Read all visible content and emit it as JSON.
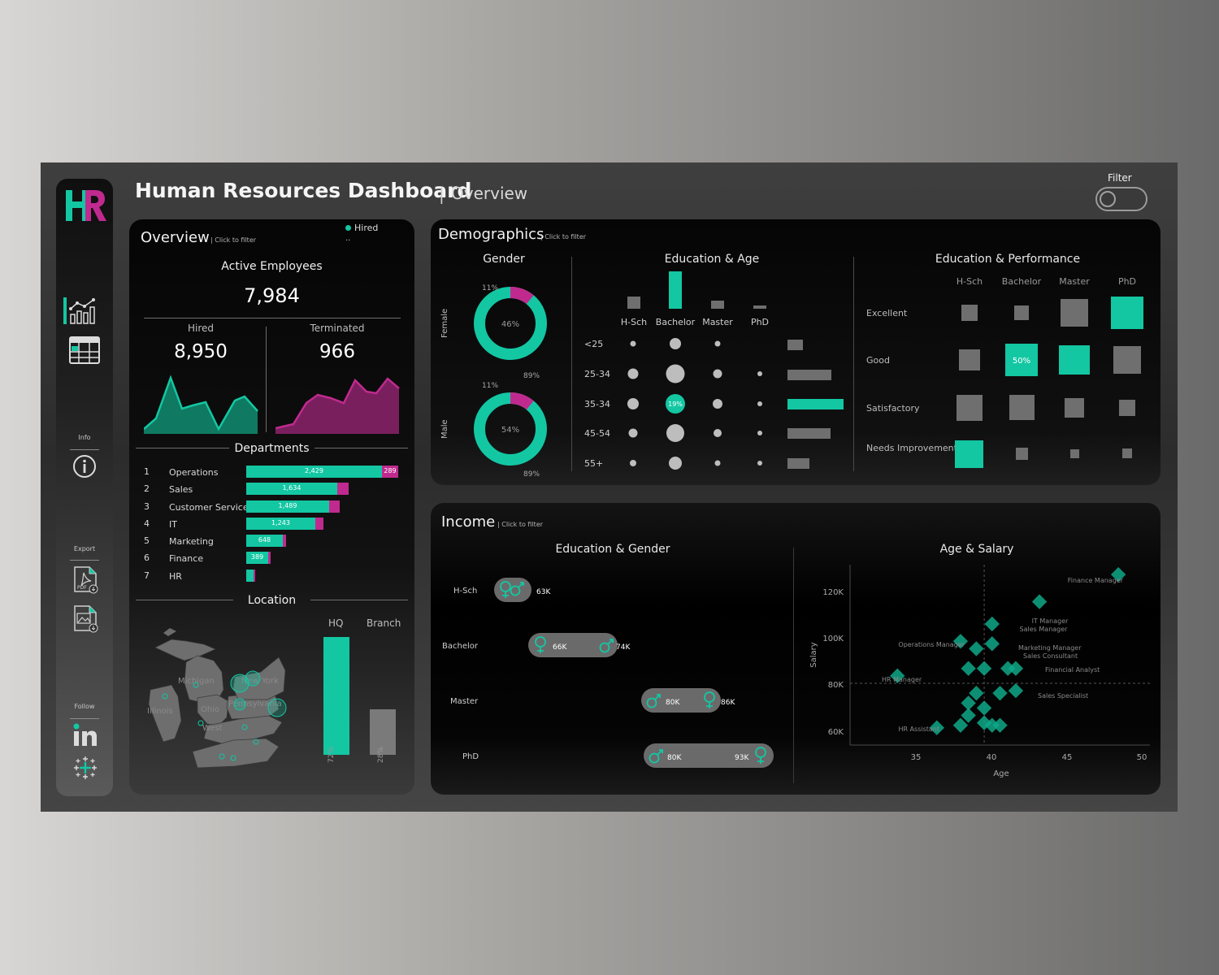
{
  "header": {
    "title": "Human Resources Dashboard",
    "separator": "|",
    "subtitle": "Overview",
    "filter_label": "Filter"
  },
  "sidebar": {
    "logo": "HR",
    "info_label": "Info",
    "export_label": "Export",
    "follow_label": "Follow"
  },
  "overview": {
    "title": "Overview",
    "hint": "| Click to filter",
    "legend": "Hired",
    "legend_sub": "..",
    "active_label": "Active Employees",
    "active_value": "7,984",
    "hired_label": "Hired",
    "hired_value": "8,950",
    "terminated_label": "Terminated",
    "terminated_value": "966",
    "departments_title": "Departments",
    "departments": [
      {
        "rank": "1",
        "name": "Operations",
        "hired": "2,429",
        "terminated": "289"
      },
      {
        "rank": "2",
        "name": "Sales",
        "hired": "1,634",
        "terminated": ""
      },
      {
        "rank": "3",
        "name": "Customer Service",
        "hired": "1,489",
        "terminated": ""
      },
      {
        "rank": "4",
        "name": "IT",
        "hired": "1,243",
        "terminated": ""
      },
      {
        "rank": "5",
        "name": "Marketing",
        "hired": "648",
        "terminated": ""
      },
      {
        "rank": "6",
        "name": "Finance",
        "hired": "389",
        "terminated": ""
      },
      {
        "rank": "7",
        "name": "HR",
        "hired": "",
        "terminated": ""
      }
    ],
    "location_title": "Location",
    "location": {
      "hq_label": "HQ",
      "branch_label": "Branch",
      "hq_pct": "72%",
      "branch_pct": "28%",
      "hq_value": 72,
      "branch_value": 28
    },
    "map_labels": [
      "Michigan",
      "New York",
      "Illinois",
      "Ohio",
      "Pennsylvania",
      "West"
    ]
  },
  "demographics": {
    "title": "Demographics",
    "hint": "| Click to filter",
    "gender_title": "Gender",
    "female": {
      "label": "Female",
      "share": "46%",
      "small_pct": "11%",
      "big_pct": "89%",
      "terminated_share": 11
    },
    "male": {
      "label": "Male",
      "share": "54%",
      "small_pct": "11%",
      "big_pct": "89%",
      "terminated_share": 11
    },
    "edu_age_title": "Education & Age",
    "edu_levels": [
      "H-Sch",
      "Bachelor",
      "Master",
      "PhD"
    ],
    "age_groups": [
      "<25",
      "25-34",
      "35-34",
      "45-54",
      "55+"
    ],
    "highlight_label": "19%",
    "edu_perf_title": "Education & Performance",
    "performance_levels": [
      "Excellent",
      "Good",
      "Satisfactory",
      "Needs Improvement"
    ],
    "good_bachelor_label": "50%"
  },
  "income": {
    "title": "Income",
    "hint": "| Click to filter",
    "edu_gender_title": "Education & Gender",
    "rows": [
      {
        "edu": "H-Sch",
        "left": "",
        "right": "63K"
      },
      {
        "edu": "Bachelor",
        "left": "66K",
        "right": "74K"
      },
      {
        "edu": "Master",
        "left": "80K",
        "right": "86K"
      },
      {
        "edu": "PhD",
        "left": "80K",
        "right": "93K"
      }
    ],
    "age_salary_title": "Age & Salary",
    "ylabel": "Salary",
    "xlabel": "Age",
    "yticks": [
      "120K",
      "100K",
      "80K",
      "60K"
    ],
    "xticks": [
      "35",
      "40",
      "45",
      "50"
    ],
    "role_labels": [
      "Finance Manager",
      "IT Manager",
      "Sales Manager",
      "Operations Manager",
      "Marketing Manager",
      "Sales Consultant",
      "Financial Analyst",
      "HR Manager",
      "Sales Specialist",
      "HR Assistant"
    ]
  },
  "colors": {
    "teal": "#13c7a3",
    "magenta": "#c02a8f",
    "gray": "#6f6f6f"
  },
  "chart_data": [
    {
      "type": "bar",
      "title": "Departments",
      "categories": [
        "Operations",
        "Sales",
        "Customer Service",
        "IT",
        "Marketing",
        "Finance",
        "HR"
      ],
      "series": [
        {
          "name": "Hired",
          "values": [
            2429,
            1634,
            1489,
            1243,
            648,
            389,
            140
          ]
        },
        {
          "name": "Terminated",
          "values": [
            289,
            180,
            160,
            130,
            40,
            30,
            12
          ]
        }
      ]
    },
    {
      "type": "bar",
      "title": "Location",
      "categories": [
        "HQ",
        "Branch"
      ],
      "values": [
        72,
        28
      ]
    },
    {
      "type": "scatter",
      "title": "Age & Salary",
      "xlabel": "Age",
      "ylabel": "Salary",
      "xlim": [
        32,
        51
      ],
      "ylim": [
        55000,
        128000
      ],
      "points": [
        {
          "x": 49,
          "y": 124000
        },
        {
          "x": 44,
          "y": 113000
        },
        {
          "x": 41,
          "y": 104000
        },
        {
          "x": 39,
          "y": 97000
        },
        {
          "x": 40,
          "y": 94000
        },
        {
          "x": 41,
          "y": 96000
        },
        {
          "x": 39.5,
          "y": 86000
        },
        {
          "x": 40.5,
          "y": 86000
        },
        {
          "x": 42,
          "y": 86000
        },
        {
          "x": 42.5,
          "y": 86000
        },
        {
          "x": 35,
          "y": 83000
        },
        {
          "x": 42.5,
          "y": 77000
        },
        {
          "x": 41.5,
          "y": 76000
        },
        {
          "x": 40,
          "y": 76000
        },
        {
          "x": 39.5,
          "y": 72000
        },
        {
          "x": 40.5,
          "y": 70000
        },
        {
          "x": 39.5,
          "y": 67000
        },
        {
          "x": 40.5,
          "y": 64000
        },
        {
          "x": 41,
          "y": 63000
        },
        {
          "x": 41.5,
          "y": 63000
        },
        {
          "x": 39,
          "y": 63000
        },
        {
          "x": 37.5,
          "y": 62000
        }
      ]
    }
  ]
}
